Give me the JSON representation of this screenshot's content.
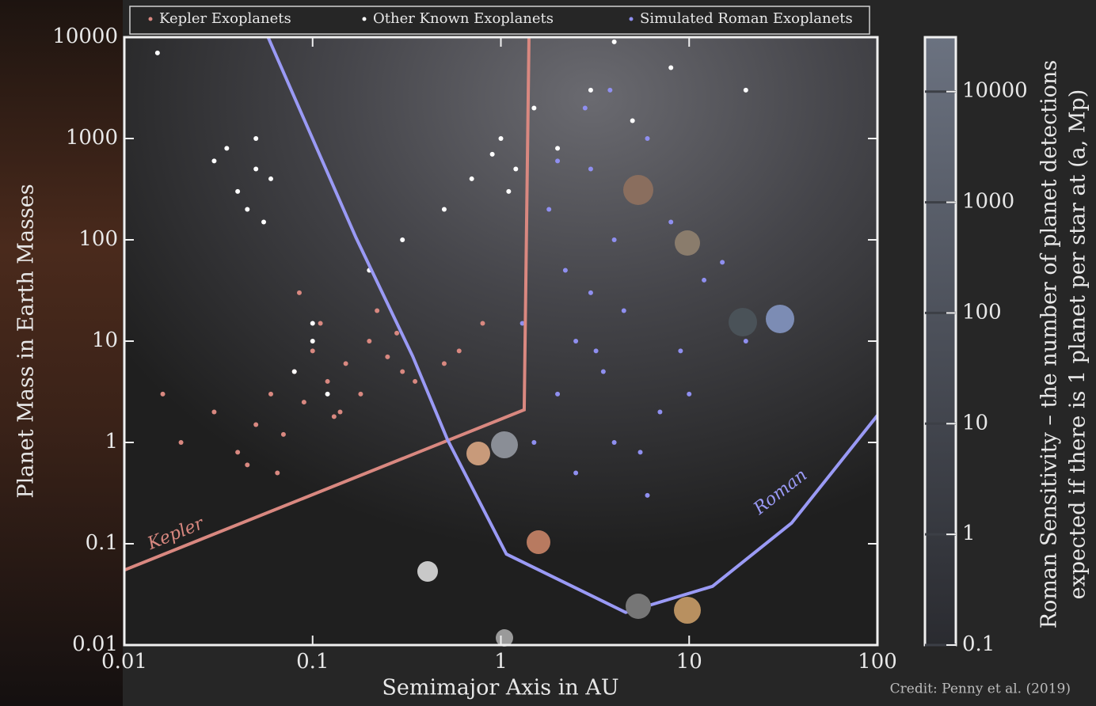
{
  "chart_data": {
    "type": "scatter",
    "x_label": "Semimajor Axis in AU",
    "y_label": "Planet Mass in Earth Masses",
    "log_x": true,
    "log_y": true,
    "xlim": [
      0.01,
      100
    ],
    "ylim": [
      0.01,
      10000
    ],
    "xticks": [
      0.01,
      0.1,
      1,
      10,
      100
    ],
    "yticks": [
      0.01,
      0.1,
      1,
      10,
      100,
      1000,
      10000
    ],
    "series": [
      {
        "name": "Kepler Exoplanets",
        "color": "#d98880",
        "x": [
          0.03,
          0.05,
          0.06,
          0.08,
          0.09,
          0.1,
          0.12,
          0.15,
          0.18,
          0.2,
          0.25,
          0.3,
          0.04,
          0.07,
          0.11,
          0.14,
          0.22,
          0.35,
          0.5,
          0.02,
          0.045,
          0.085,
          0.13,
          0.28,
          0.6,
          0.8,
          0.016,
          0.065
        ],
        "values": [
          2,
          1.5,
          3,
          5,
          2.5,
          8,
          4,
          6,
          3,
          10,
          7,
          5,
          0.8,
          1.2,
          15,
          2,
          20,
          4,
          6,
          1,
          0.6,
          30,
          1.8,
          12,
          8,
          15,
          3,
          0.5
        ]
      },
      {
        "name": "Other Known Exoplanets",
        "color": "#ffffff",
        "x": [
          0.04,
          0.05,
          0.045,
          0.055,
          0.035,
          0.06,
          0.05,
          0.03,
          0.1,
          0.08,
          1,
          1.2,
          0.9,
          1.5,
          2,
          3,
          0.7,
          5,
          8,
          0.5,
          0.3,
          20,
          0.015,
          0.12,
          0.1,
          4,
          1.1,
          0.2
        ],
        "values": [
          300,
          500,
          200,
          150,
          800,
          400,
          1000,
          600,
          10,
          5,
          1000,
          500,
          700,
          2000,
          800,
          3000,
          400,
          1500,
          5000,
          200,
          100,
          3000,
          7000,
          3,
          15,
          9000,
          300,
          50
        ]
      },
      {
        "name": "Simulated Roman Exoplanets",
        "color": "#8f8ff0",
        "x": [
          1.5,
          2,
          2.5,
          3,
          4,
          5,
          6,
          3.5,
          2.2,
          1.8,
          4.5,
          7,
          9,
          12,
          15,
          3,
          2.8,
          5.5,
          1.3,
          8,
          2.5,
          4,
          6,
          3.2,
          10,
          20,
          2,
          3.8
        ],
        "values": [
          1,
          3,
          10,
          30,
          100,
          300,
          1000,
          5,
          50,
          200,
          20,
          2,
          8,
          40,
          60,
          500,
          2000,
          0.8,
          15,
          150,
          0.5,
          1,
          0.3,
          8,
          3,
          10,
          600,
          3000
        ]
      }
    ],
    "boundaries": [
      {
        "name": "Kepler",
        "color": "#d98880",
        "x": [
          0.01,
          1.33,
          1.41
        ],
        "values": [
          0.055,
          2.1,
          10000
        ]
      },
      {
        "name": "Roman",
        "color": "#9a9af5",
        "x": [
          0.058,
          0.17,
          0.34,
          0.52,
          1.07,
          4.6,
          13.3,
          35,
          100
        ],
        "values": [
          10000,
          105,
          7.1,
          1.07,
          0.079,
          0.021,
          0.038,
          0.16,
          1.85
        ]
      }
    ],
    "colorbar": {
      "label_lines": [
        "Roman Sensitivity – the number of planet detections",
        "expected if there is 1 planet per star at (a, Mp)"
      ],
      "log": true,
      "lim": [
        0.1,
        31000
      ],
      "ticks": [
        0.1,
        1,
        10,
        100,
        1000,
        10000
      ]
    },
    "credit": "Credit: Penny et al. (2019)"
  }
}
